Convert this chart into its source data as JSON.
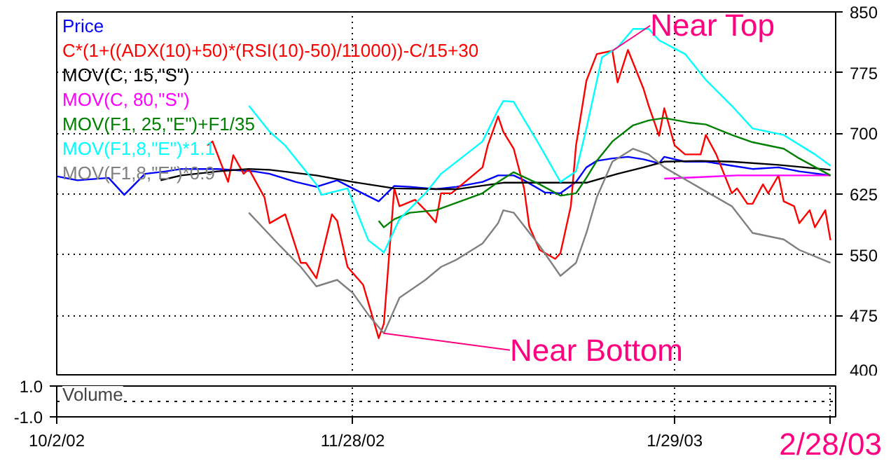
{
  "chart_data": [
    {
      "type": "line",
      "xlim": [
        "2002-10-02",
        "2003-03-01"
      ],
      "ylim": [
        400,
        850
      ],
      "xticks": [
        {
          "value": "2002-10-02",
          "label": null
        },
        {
          "value": "2002-11-28",
          "label": null
        },
        {
          "value": "2003-01-29",
          "label": null
        }
      ],
      "yticks": [
        400,
        475,
        550,
        625,
        700,
        775,
        850
      ],
      "tick_labels": "y",
      "grid": true,
      "legend": "top left",
      "line_style": "solid",
      "series": [
        {
          "name": "Price",
          "color": "#0000ff",
          "x": [
            "2002-10-02",
            "2002-10-06",
            "2002-10-12",
            "2002-10-15",
            "2002-10-19",
            "2002-10-23",
            "2002-10-26",
            "2002-10-31",
            "2002-11-02",
            "2002-11-09",
            "2002-11-12",
            "2002-11-17",
            "2002-11-21",
            "2002-11-25",
            "2002-11-28",
            "2002-12-03",
            "2002-12-06",
            "2002-12-09",
            "2002-12-14",
            "2002-12-18",
            "2002-12-23",
            "2002-12-26",
            "2002-12-29",
            "2002-12-31",
            "2003-01-04",
            "2003-01-07",
            "2003-01-10",
            "2003-01-12",
            "2003-01-14",
            "2003-01-17",
            "2003-01-20",
            "2003-01-23",
            "2003-01-26",
            "2003-01-27",
            "2003-01-31",
            "2003-02-04",
            "2003-02-09",
            "2003-02-13",
            "2003-02-18",
            "2003-02-22",
            "2003-02-28"
          ],
          "values": [
            647,
            642,
            645,
            624,
            650,
            653,
            656,
            656,
            656,
            653,
            650,
            640,
            634,
            642,
            632,
            616,
            635,
            634,
            631,
            634,
            640,
            648,
            648,
            642,
            627,
            626,
            640,
            658,
            666,
            669,
            671,
            668,
            663,
            671,
            665,
            665,
            660,
            656,
            658,
            653,
            648
          ]
        },
        {
          "name": "C*(1+((ADX(10)+50)*(RSI(10)-50)/11000))-C/15+30",
          "color": "#ff0000",
          "x": [
            "2002-10-31",
            "2002-11-01",
            "2002-11-04",
            "2002-11-05",
            "2002-11-07",
            "2002-11-08",
            "2002-11-11",
            "2002-11-12",
            "2002-11-15",
            "2002-11-18",
            "2002-11-19",
            "2002-11-21",
            "2002-11-24",
            "2002-11-25",
            "2002-11-27",
            "2002-11-30",
            "2002-12-03",
            "2002-12-04",
            "2002-12-06",
            "2002-12-07",
            "2002-12-10",
            "2002-12-12",
            "2002-12-14",
            "2002-12-15",
            "2002-12-17",
            "2002-12-20",
            "2002-12-23",
            "2002-12-24",
            "2002-12-26",
            "2002-12-27",
            "2002-12-29",
            "2002-12-31",
            "2003-01-01",
            "2003-01-03",
            "2003-01-06",
            "2003-01-07",
            "2003-01-09",
            "2003-01-10",
            "2003-01-12",
            "2003-01-14",
            "2003-01-17",
            "2003-01-18",
            "2003-01-20",
            "2003-01-23",
            "2003-01-24",
            "2003-01-26",
            "2003-01-27",
            "2003-01-29",
            "2003-01-31",
            "2003-02-03",
            "2003-02-04",
            "2003-02-06",
            "2003-02-09",
            "2003-02-10",
            "2003-02-12",
            "2003-02-13",
            "2003-02-15",
            "2003-02-16",
            "2003-02-18",
            "2003-02-19",
            "2003-02-21",
            "2003-02-22",
            "2003-02-24",
            "2003-02-25",
            "2003-02-27",
            "2003-02-28"
          ],
          "values": [
            685,
            690,
            640,
            673,
            650,
            656,
            621,
            589,
            600,
            540,
            540,
            521,
            600,
            592,
            535,
            513,
            447,
            465,
            632,
            610,
            618,
            605,
            590,
            626,
            626,
            642,
            658,
            685,
            721,
            702,
            681,
            632,
            585,
            556,
            545,
            552,
            610,
            685,
            765,
            798,
            802,
            763,
            803,
            755,
            734,
            697,
            731,
            685,
            674,
            674,
            698,
            674,
            626,
            632,
            613,
            613,
            637,
            626,
            648,
            616,
            610,
            589,
            605,
            584,
            605,
            568
          ]
        },
        {
          "name": "MOV(C, 15,\"S\")",
          "color": "#000000",
          "x": [
            "2002-10-22",
            "2002-10-26",
            "2002-11-02",
            "2002-11-08",
            "2002-11-12",
            "2002-11-21",
            "2002-11-28",
            "2002-12-06",
            "2002-12-15",
            "2002-12-18",
            "2002-12-27",
            "2003-01-04",
            "2003-01-12",
            "2003-01-18",
            "2003-01-23",
            "2003-01-27",
            "2003-02-03",
            "2003-02-09",
            "2003-02-18",
            "2003-02-28"
          ],
          "values": [
            642,
            648,
            653,
            656,
            655,
            648,
            640,
            632,
            631,
            631,
            639,
            639,
            639,
            650,
            658,
            665,
            666,
            665,
            661,
            655
          ]
        },
        {
          "name": "MOV(C, 80,\"S\")",
          "color": "#ff00ff",
          "x": [
            "2003-01-27",
            "2003-02-10",
            "2003-02-28"
          ],
          "values": [
            644,
            648,
            648
          ]
        },
        {
          "name": "MOV(F1, 25,\"E\")+F1/35",
          "color": "#008000",
          "x": [
            "2002-12-03",
            "2002-12-04",
            "2002-12-06",
            "2002-12-09",
            "2002-12-14",
            "2002-12-23",
            "2002-12-26",
            "2002-12-29",
            "2003-01-03",
            "2003-01-07",
            "2003-01-10",
            "2003-01-12",
            "2003-01-14",
            "2003-01-17",
            "2003-01-21",
            "2003-01-24",
            "2003-01-27",
            "2003-02-01",
            "2003-02-04",
            "2003-02-09",
            "2003-02-13",
            "2003-02-19",
            "2003-02-22",
            "2003-02-28"
          ],
          "values": [
            592,
            584,
            594,
            602,
            605,
            626,
            640,
            652,
            637,
            623,
            626,
            645,
            666,
            690,
            710,
            716,
            719,
            713,
            711,
            698,
            689,
            681,
            669,
            648
          ]
        },
        {
          "name": "MOV(F1,8,\"E\")*1.1",
          "color": "#00ffff",
          "x": [
            "2002-11-08",
            "2002-11-12",
            "2002-11-15",
            "2002-11-21",
            "2002-11-22",
            "2002-11-27",
            "2002-12-01",
            "2002-12-04",
            "2002-12-07",
            "2002-12-12",
            "2002-12-15",
            "2002-12-23",
            "2002-12-26",
            "2002-12-27",
            "2002-12-29",
            "2003-01-03",
            "2003-01-07",
            "2003-01-10",
            "2003-01-12",
            "2003-01-15",
            "2003-01-18",
            "2003-01-21",
            "2003-01-24",
            "2003-01-26",
            "2003-01-31",
            "2003-02-04",
            "2003-02-09",
            "2003-02-13",
            "2003-02-19",
            "2003-02-25",
            "2003-02-28"
          ],
          "values": [
            734,
            702,
            685,
            637,
            624,
            632,
            568,
            553,
            594,
            626,
            650,
            690,
            729,
            740,
            739,
            685,
            640,
            653,
            706,
            794,
            806,
            829,
            829,
            815,
            798,
            766,
            734,
            706,
            698,
            674,
            660
          ]
        },
        {
          "name": "MOV(F1,8,\"E\")*0.9",
          "color": "#808080",
          "x": [
            "2002-11-08",
            "2002-11-14",
            "2002-11-18",
            "2002-11-21",
            "2002-11-25",
            "2002-11-28",
            "2002-12-01",
            "2002-12-04",
            "2002-12-07",
            "2002-12-12",
            "2002-12-15",
            "2002-12-18",
            "2002-12-23",
            "2002-12-26",
            "2002-12-27",
            "2002-12-29",
            "2003-01-03",
            "2003-01-07",
            "2003-01-10",
            "2003-01-12",
            "2003-01-14",
            "2003-01-17",
            "2003-01-21",
            "2003-01-24",
            "2003-01-27",
            "2003-02-03",
            "2003-02-09",
            "2003-02-13",
            "2003-02-19",
            "2003-02-22",
            "2003-02-28"
          ],
          "values": [
            602,
            561,
            535,
            511,
            519,
            503,
            476,
            453,
            497,
            519,
            535,
            544,
            564,
            589,
            605,
            602,
            561,
            524,
            540,
            577,
            621,
            665,
            681,
            674,
            658,
            632,
            610,
            577,
            569,
            556,
            540
          ]
        }
      ],
      "annotations": [
        {
          "text": "Near Top",
          "x": "2003-01-17",
          "y": 802
        },
        {
          "text": "Near Bottom",
          "x": "2002-12-04",
          "y": 453
        }
      ]
    },
    {
      "type": "line",
      "title": "Volume",
      "xlim": [
        "2002-10-02",
        "2003-03-01"
      ],
      "ylim": [
        -1,
        1
      ],
      "xticks": [
        {
          "value": "2002-10-02",
          "label": "10/2/02"
        },
        {
          "value": "2002-11-28",
          "label": "11/28/02"
        },
        {
          "value": "2003-01-29",
          "label": "1/29/03"
        },
        {
          "value": "2003-02-28",
          "label": null
        }
      ],
      "yticks": [
        {
          "value": 1,
          "label": "1.0"
        },
        {
          "value": -1,
          "label": "-1.0"
        }
      ],
      "grid": "x",
      "ref_lines": [
        {
          "axis": "y",
          "value": 0,
          "line_style": "dotted",
          "color": "#000000"
        }
      ],
      "annotations": [
        "2/28/03"
      ]
    }
  ]
}
